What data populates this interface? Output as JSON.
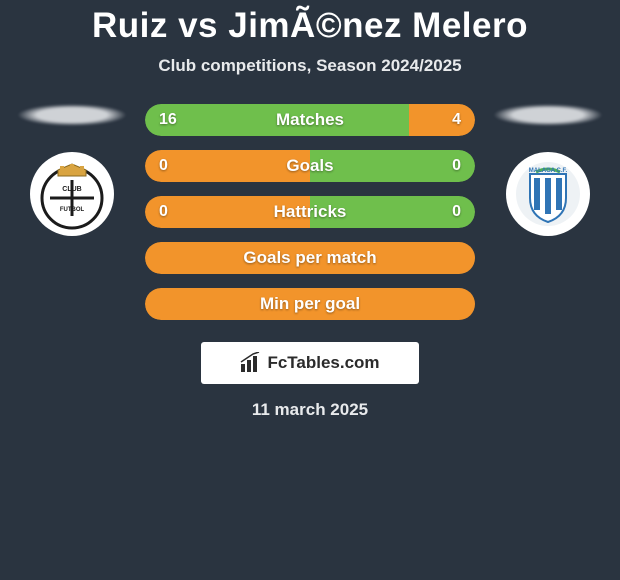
{
  "title": "Ruiz vs JimÃ©nez Melero",
  "subtitle": "Club competitions, Season 2024/2025",
  "date": "11 march 2025",
  "brand": "FcTables.com",
  "colors": {
    "background": "#2a3440",
    "left_default": "#f2942b",
    "right_default": "#6fbf4c",
    "text": "#ffffff"
  },
  "stats": [
    {
      "label": "Matches",
      "left_value": "16",
      "right_value": "4",
      "left_pct": 80,
      "right_pct": 20,
      "left_color": "#6fbf4c",
      "right_color": "#f2942b"
    },
    {
      "label": "Goals",
      "left_value": "0",
      "right_value": "0",
      "left_pct": 50,
      "right_pct": 50,
      "left_color": "#f2942b",
      "right_color": "#6fbf4c"
    },
    {
      "label": "Hattricks",
      "left_value": "0",
      "right_value": "0",
      "left_pct": 50,
      "right_pct": 50,
      "left_color": "#f2942b",
      "right_color": "#6fbf4c"
    },
    {
      "label": "Goals per match",
      "left_value": "",
      "right_value": "",
      "left_pct": 100,
      "right_pct": 0,
      "left_color": "#f2942b",
      "right_color": "#6fbf4c"
    },
    {
      "label": "Min per goal",
      "left_value": "",
      "right_value": "",
      "left_pct": 100,
      "right_pct": 0,
      "left_color": "#f2942b",
      "right_color": "#6fbf4c"
    }
  ],
  "teams": {
    "left": {
      "name": "Burgos CF",
      "crest_bg": "#ffffff",
      "accent": "#1b1b1b"
    },
    "right": {
      "name": "Málaga CF",
      "crest_bg": "#ffffff",
      "accent": "#2f74b5"
    }
  }
}
